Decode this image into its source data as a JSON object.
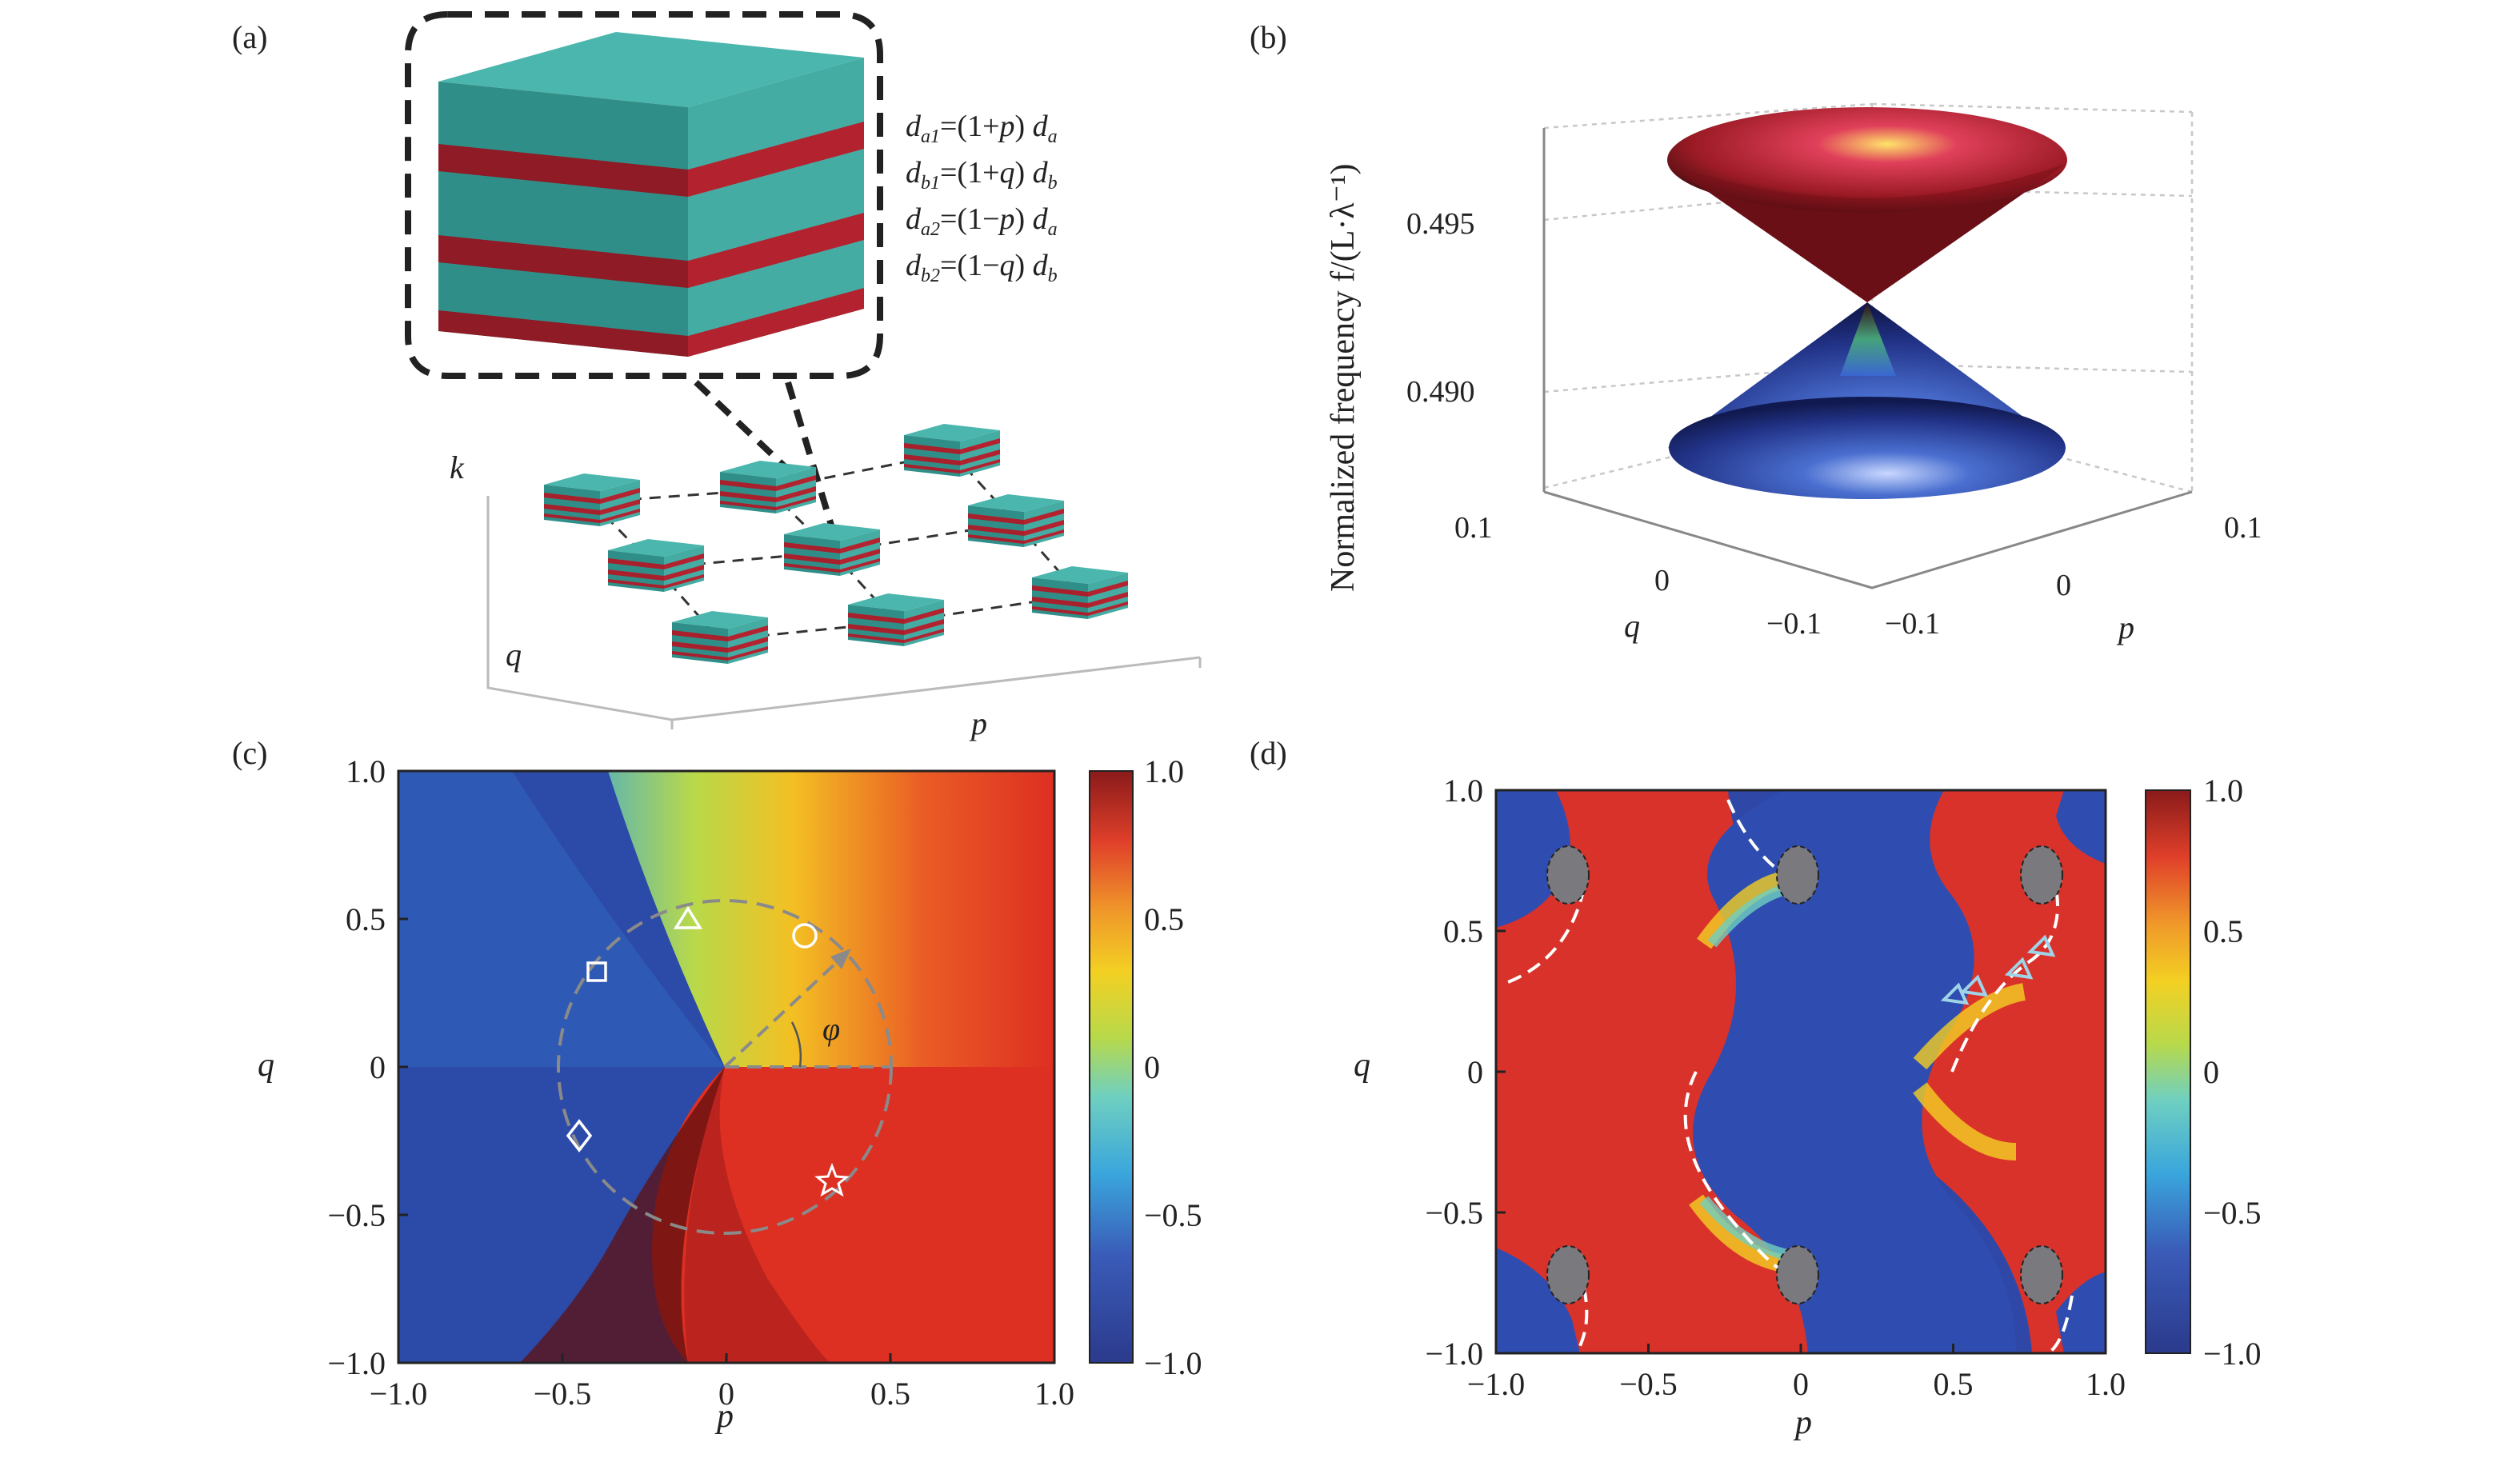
{
  "panels": {
    "a": {
      "label": "(a)",
      "equations": [
        {
          "sym": "d",
          "sub": "a1",
          "rhs_a": "=(1+",
          "var": "p",
          "rhs_b": ") d",
          "sub2": "a"
        },
        {
          "sym": "d",
          "sub": "b1",
          "rhs_a": "=(1+",
          "var": "q",
          "rhs_b": ") d",
          "sub2": "b"
        },
        {
          "sym": "d",
          "sub": "a2",
          "rhs_a": "=(1−",
          "var": "p",
          "rhs_b": ") d",
          "sub2": "a"
        },
        {
          "sym": "d",
          "sub": "b2",
          "rhs_a": "=(1−",
          "var": "q",
          "rhs_b": ") d",
          "sub2": "b"
        }
      ],
      "axes": {
        "k": "k",
        "q": "q",
        "p": "p"
      },
      "colors": {
        "teal": "#4bb6ad",
        "red": "#a8202c"
      }
    },
    "b": {
      "label": "(b)",
      "ylabel": "Normalized frequency f/(L·λ⁻¹)",
      "zticks": [
        "0.495",
        "0.490"
      ],
      "q_ticks": [
        "0.1",
        "0",
        "−0.1"
      ],
      "p_ticks": [
        "−0.1",
        "0",
        "0.1"
      ],
      "q_label": "q",
      "p_label": "p"
    },
    "c": {
      "label": "(c)",
      "xlabel": "p",
      "ylabel": "q",
      "xticks": [
        "−1.0",
        "−0.5",
        "0",
        "0.5",
        "1.0"
      ],
      "yticks": [
        "1.0",
        "0.5",
        "0",
        "−0.5",
        "−1.0"
      ],
      "colorbar_ticks": [
        "1.0",
        "0.5",
        "0",
        "−0.5",
        "−1.0"
      ],
      "angle_label": "φ"
    },
    "d": {
      "label": "(d)",
      "xlabel": "p",
      "ylabel": "q",
      "xticks": [
        "−1.0",
        "−0.5",
        "0",
        "0.5",
        "1.0"
      ],
      "yticks": [
        "1.0",
        "0.5",
        "0",
        "−0.5",
        "−1.0"
      ],
      "colorbar_ticks": [
        "1.0",
        "0.5",
        "0",
        "−0.5",
        "−1.0"
      ]
    }
  }
}
